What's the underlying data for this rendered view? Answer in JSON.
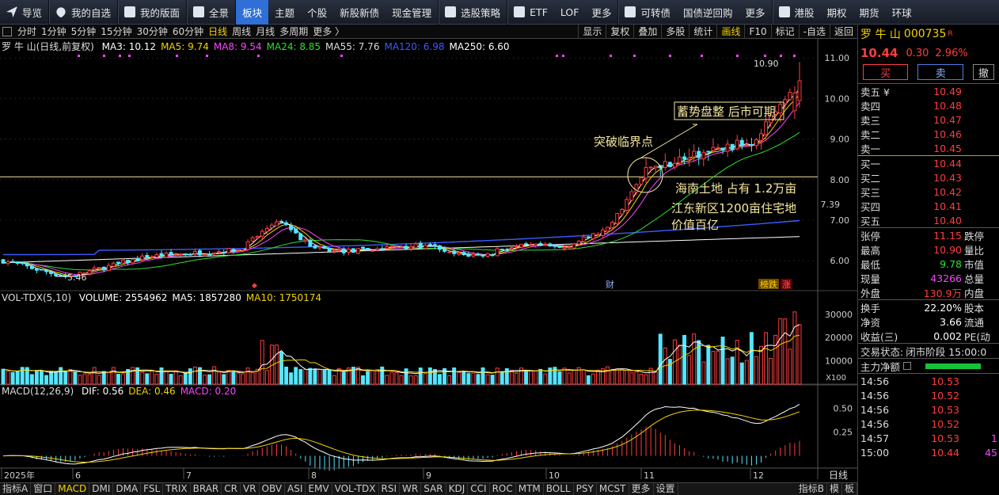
{
  "nav": {
    "items": [
      {
        "label": "导览",
        "icon": "arrow-icon"
      },
      {
        "label": "我的自选",
        "icon": "heart-icon"
      },
      {
        "label": "我的版面",
        "icon": "layout-icon"
      },
      {
        "label": "全景",
        "icon": "grid-icon"
      },
      {
        "label": "板块",
        "active": true
      },
      {
        "label": "主题"
      },
      {
        "label": "个股"
      },
      {
        "label": "新股新债"
      },
      {
        "label": "现金管理"
      },
      {
        "label": "选股策略",
        "icon": "filter-icon"
      },
      {
        "label": "ETF",
        "icon": "chart-icon"
      },
      {
        "label": "LOF"
      },
      {
        "label": "更多"
      },
      {
        "label": "可转债",
        "icon": "bond-icon"
      },
      {
        "label": "国债逆回购"
      },
      {
        "label": "更多"
      },
      {
        "label": "港股",
        "icon": "hk-icon"
      },
      {
        "label": "期权"
      },
      {
        "label": "期货"
      },
      {
        "label": "环球"
      }
    ]
  },
  "toolbar": {
    "periods": [
      "分时",
      "1分钟",
      "5分钟",
      "15分钟",
      "30分钟",
      "60分钟",
      "日线",
      "周线",
      "月线",
      "多周期",
      "更多 〉"
    ],
    "active_period": "日线",
    "right": [
      "显示",
      "复权",
      "叠加",
      "多股",
      "统计",
      "画线",
      "F10",
      "标记",
      "-自选",
      "返回"
    ],
    "active_right": "画线"
  },
  "legend_main": {
    "name": "罗 牛 山(日线,前复权)",
    "items": [
      {
        "text": "MA3: 10.12",
        "color": "#ffffff"
      },
      {
        "text": "MA5: 9.74",
        "color": "#f5d200"
      },
      {
        "text": "MA8: 9.54",
        "color": "#ff44ff"
      },
      {
        "text": "MA24: 8.85",
        "color": "#2ee02e"
      },
      {
        "text": "MA55: 7.76",
        "color": "#dddddd"
      },
      {
        "text": "MA120: 6.98",
        "color": "#3b5cff"
      },
      {
        "text": "MA250: 6.60",
        "color": "#ffffff"
      }
    ]
  },
  "legend_vol": {
    "name": "VOL-TDX(5,10)",
    "items": [
      {
        "text": "VOLUME: 2554962",
        "color": "#ffffff"
      },
      {
        "text": "MA5: 1857280",
        "color": "#ffffff"
      },
      {
        "text": "MA10: 1750174",
        "color": "#f5d200"
      }
    ]
  },
  "legend_macd": {
    "name": "MACD(12,26,9)",
    "items": [
      {
        "text": "DIF: 0.56",
        "color": "#ffffff"
      },
      {
        "text": "DEA: 0.46",
        "color": "#f5d200"
      },
      {
        "text": "MACD: 0.20",
        "color": "#ff44ff"
      }
    ]
  },
  "annotations": {
    "breakout": "突破临界点",
    "consolidation": "蓄势盘整 后市可期",
    "hainan_1": "海南土地 占有 1.2万亩",
    "hainan_2": "江东新区1200亩住宅地",
    "hainan_3": "价值百亿",
    "high_label": "10.90",
    "low_label": "5.46",
    "current_tag": "7.39",
    "fin_tag": "财",
    "rank_tag": "榜跌",
    "up_tag": "涨",
    "vol_unit": "X100"
  },
  "chart_data": {
    "type": "candlestick",
    "price_axis": {
      "ticks": [
        11.0,
        10.0,
        9.0,
        8.0,
        7.0,
        6.0
      ],
      "range": [
        5.3,
        11.2
      ]
    },
    "volume_axis": {
      "ticks": [
        30000,
        20000,
        10000
      ]
    },
    "macd_axis": {
      "ticks": [
        0.5,
        0.25
      ]
    },
    "x_labels": [
      "2025年",
      "6",
      "7",
      "8",
      "9",
      "10",
      "11",
      "12"
    ],
    "timeframe_label": "日线",
    "high": 10.9,
    "low": 5.46,
    "last": 10.44,
    "reference_line": 8.07
  },
  "bottom_tabs": {
    "items": [
      "指标A",
      "窗口",
      "MACD",
      "DMI",
      "DMA",
      "FSL",
      "TRIX",
      "BRAR",
      "CR",
      "VR",
      "OBV",
      "ASI",
      "EMV",
      "VOL-TDX",
      "RSI",
      "WR",
      "SAR",
      "KDJ",
      "CCI",
      "ROC",
      "MTM",
      "BOLL",
      "PSY",
      "MCST",
      "更多",
      "设置"
    ],
    "active": "MACD",
    "right": [
      "指标B",
      "模",
      "板"
    ]
  },
  "quote": {
    "name": "罗 牛 山",
    "code": "000735",
    "badge": "R",
    "price": "10.44",
    "change": "0.30",
    "change_pct": "2.96%",
    "buy_label": "买",
    "sell_label": "卖",
    "cancel_label": "撤",
    "asks": [
      {
        "label": "卖五 ¥",
        "price": "10.49"
      },
      {
        "label": "卖四",
        "price": "10.48"
      },
      {
        "label": "卖三",
        "price": "10.47"
      },
      {
        "label": "卖二",
        "price": "10.46"
      },
      {
        "label": "卖一",
        "price": "10.45"
      }
    ],
    "bids": [
      {
        "label": "买一",
        "price": "10.44"
      },
      {
        "label": "买二",
        "price": "10.43"
      },
      {
        "label": "买三",
        "price": "10.42"
      },
      {
        "label": "买四",
        "price": "10.41"
      },
      {
        "label": "买五",
        "price": "10.40"
      }
    ],
    "stats": [
      {
        "label": "张停",
        "value": "11.15",
        "extra": "跌停",
        "color": "red"
      },
      {
        "label": "最高",
        "value": "10.90",
        "extra": "量比",
        "color": "red"
      },
      {
        "label": "最低",
        "value": "9.78",
        "extra": "市值",
        "color": "green"
      },
      {
        "label": "现量",
        "value": "43266",
        "extra": "总量",
        "color": "magenta"
      },
      {
        "label": "外盘",
        "value": "130.9万",
        "extra": "内盘",
        "color": "red"
      }
    ],
    "stats2": [
      {
        "label": "换手",
        "value": "22.20%",
        "extra": "股本"
      },
      {
        "label": "净资",
        "value": "3.66",
        "extra": "流通"
      },
      {
        "label": "收益(三)",
        "value": "0.002",
        "extra": "PE(动"
      }
    ],
    "status_label": "交易状态:",
    "status_value": "闭市阶段 15:00:0",
    "netflow_label": "主力净额",
    "ticks": [
      {
        "time": "14:56",
        "price": "10.53"
      },
      {
        "time": "14:56",
        "price": "10.52"
      },
      {
        "time": "14:56",
        "price": "10.53"
      },
      {
        "time": "14:56",
        "price": "10.52"
      },
      {
        "time": "14:57",
        "price": "10.53",
        "vol": "1"
      },
      {
        "time": "15:00",
        "price": "10.44",
        "vol": "45"
      }
    ]
  }
}
